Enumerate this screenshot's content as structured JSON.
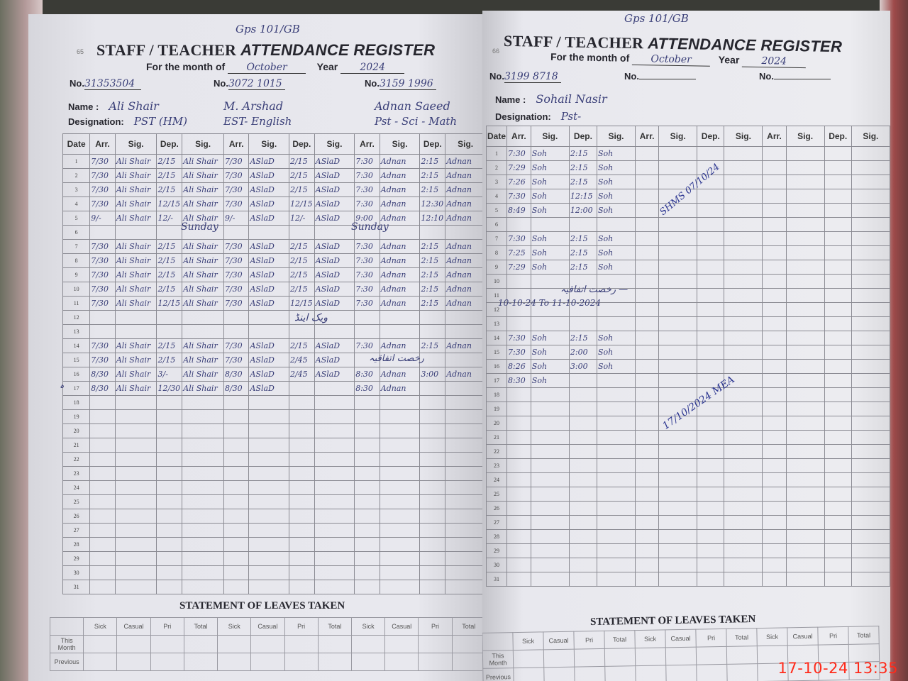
{
  "register_title_prefix": "STAFF / TEACHER",
  "register_title_main": "ATTENDANCE REGISTER",
  "month_label": "For the month of",
  "year_label": "Year",
  "no_label": "No.",
  "name_label": "Name :",
  "designation_label": "Designation:",
  "columns": [
    "Date",
    "Arr.",
    "Sig.",
    "Dep.",
    "Sig."
  ],
  "leaves": {
    "title": "STATEMENT OF LEAVES TAKEN",
    "columns": [
      "Sick",
      "Casual",
      "Pri",
      "Total"
    ],
    "row_labels": [
      "This Month",
      "Previous"
    ]
  },
  "pages": [
    {
      "school_note": "Gps 101/GB",
      "page_mark": "65",
      "month": "October",
      "year": "2024",
      "teachers": [
        {
          "no": "31353504",
          "name": "Ali Shair",
          "designation": "PST (HM)",
          "sig": "Ali Shair",
          "rows": {
            "1": [
              "7/30",
              "2/15"
            ],
            "2": [
              "7/30",
              "2/15"
            ],
            "3": [
              "7/30",
              "2/15"
            ],
            "4": [
              "7/30",
              "12/15"
            ],
            "5": [
              "9/-",
              "12/-"
            ],
            "7": [
              "7/30",
              "2/15"
            ],
            "8": [
              "7/30",
              "2/15"
            ],
            "9": [
              "7/30",
              "2/15"
            ],
            "10": [
              "7/30",
              "2/15"
            ],
            "11": [
              "7/30",
              "12/15"
            ],
            "14": [
              "7/30",
              "2/15"
            ],
            "15": [
              "7/30",
              "2/15"
            ],
            "16": [
              "8/30",
              "3/-"
            ],
            "17": [
              "8/30",
              "12/30"
            ]
          }
        },
        {
          "no": "3072 1015",
          "name": "M. Arshad",
          "designation": "EST- English",
          "sig": "ASlaD",
          "rows": {
            "1": [
              "7/30",
              "2/15"
            ],
            "2": [
              "7/30",
              "2/15"
            ],
            "3": [
              "7/30",
              "2/15"
            ],
            "4": [
              "7/30",
              "12/15"
            ],
            "5": [
              "9/-",
              "12/-"
            ],
            "7": [
              "7/30",
              "2/15"
            ],
            "8": [
              "7/30",
              "2/15"
            ],
            "9": [
              "7/30",
              "2/15"
            ],
            "10": [
              "7/30",
              "2/15"
            ],
            "11": [
              "7/30",
              "12/15"
            ],
            "14": [
              "7/30",
              "2/15"
            ],
            "15": [
              "7/30",
              "2/45"
            ],
            "16": [
              "8/30",
              "2/45"
            ],
            "17": [
              "8/30",
              ""
            ]
          }
        },
        {
          "no": "3159 1996",
          "name": "Adnan Saeed",
          "designation": "Pst - Sci - Math",
          "sig": "Adnan",
          "rows": {
            "1": [
              "7:30",
              "2:15"
            ],
            "2": [
              "7:30",
              "2:15"
            ],
            "3": [
              "7:30",
              "2:15"
            ],
            "4": [
              "7:30",
              "12:30"
            ],
            "5": [
              "9:00",
              "12:10"
            ],
            "7": [
              "7:30",
              "2:15"
            ],
            "8": [
              "7:30",
              "2:15"
            ],
            "9": [
              "7:30",
              "2:15"
            ],
            "10": [
              "7:30",
              "2:15"
            ],
            "11": [
              "7:30",
              "2:15"
            ],
            "14": [
              "7:30",
              "2:15"
            ],
            "16": [
              "8:30",
              "3:00"
            ],
            "17": [
              "8:30",
              ""
            ]
          }
        }
      ],
      "notes": {
        "sunday_1": "Sunday",
        "sunday_2": "Sunday",
        "weekend": "ویک اینڈ",
        "leave_t3": "رخصت اتفاقیہ",
        "row17_mark": "ہ"
      }
    },
    {
      "school_note": "Gps 101/GB",
      "page_mark": "66",
      "month": "October",
      "year": "2024",
      "teachers": [
        {
          "no": "3199 8718",
          "name": "Sohail Nasir",
          "designation": "Pst-",
          "sig": "Soh",
          "rows": {
            "1": [
              "7:30",
              "2:15"
            ],
            "2": [
              "7:29",
              "2:15"
            ],
            "3": [
              "7:26",
              "2:15"
            ],
            "4": [
              "7:30",
              "12:15"
            ],
            "5": [
              "8:49",
              "12:00"
            ],
            "7": [
              "7:30",
              "2:15"
            ],
            "8": [
              "7:25",
              "2:15"
            ],
            "9": [
              "7:29",
              "2:15"
            ],
            "14": [
              "7:30",
              "2:15"
            ],
            "15": [
              "7:30",
              "2:00"
            ],
            "16": [
              "8:26",
              "3:00"
            ],
            "17": [
              "8:30",
              ""
            ]
          }
        },
        {
          "no": "",
          "name": "",
          "designation": "",
          "sig": "",
          "rows": {}
        },
        {
          "no": "",
          "name": "",
          "designation": "",
          "sig": "",
          "rows": {}
        }
      ],
      "notes": {
        "leave": "رخصت اتفاقیہ —",
        "leave_dates": "10-10-24 To 11-10-2024"
      },
      "stamps": {
        "first": "SHMS 07/10/24",
        "second": "17/10/2024 MEA"
      }
    }
  ],
  "timestamp": "17-10-24  13:35"
}
